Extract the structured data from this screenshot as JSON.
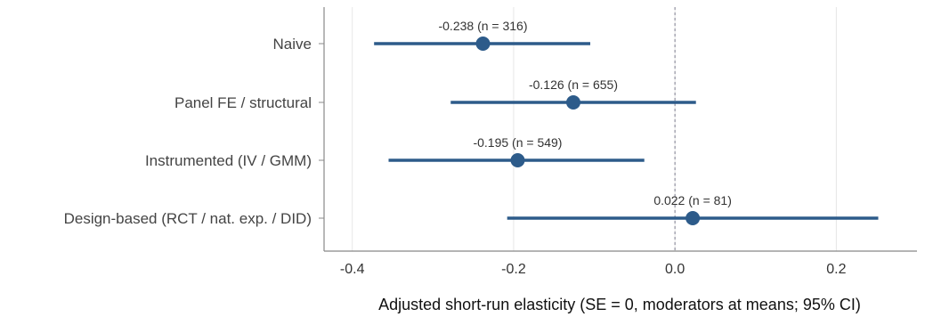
{
  "chart_data": {
    "type": "forest",
    "categories": [
      "Naive",
      "Panel FE / structural",
      "Instrumented (IV / GMM)",
      "Design-based (RCT / nat. exp. / DID)"
    ],
    "estimates": [
      -0.238,
      -0.126,
      -0.195,
      0.022
    ],
    "ci_low": [
      -0.373,
      -0.278,
      -0.355,
      -0.208
    ],
    "ci_high": [
      -0.105,
      0.026,
      -0.038,
      0.252
    ],
    "data_labels": [
      "-0.238  (n = 316)",
      "-0.126  (n = 655)",
      "-0.195  (n = 549)",
      "0.022  (n = 81)"
    ],
    "xlim": [
      -0.435,
      0.3
    ],
    "xticks": [
      -0.4,
      -0.2,
      0.0,
      0.2
    ],
    "xtick_labels": [
      "-0.4",
      "-0.2",
      "0.0",
      "0.2"
    ],
    "xlabel": "Adjusted short-run elasticity  (SE = 0, moderators at means; 95% CI)",
    "reference_line": 0,
    "grid": "vertical",
    "colors": {
      "series": "#2d5b8a",
      "reference": "#9a9aa8",
      "grid": "#e6e6e6",
      "axis": "#888888"
    }
  }
}
